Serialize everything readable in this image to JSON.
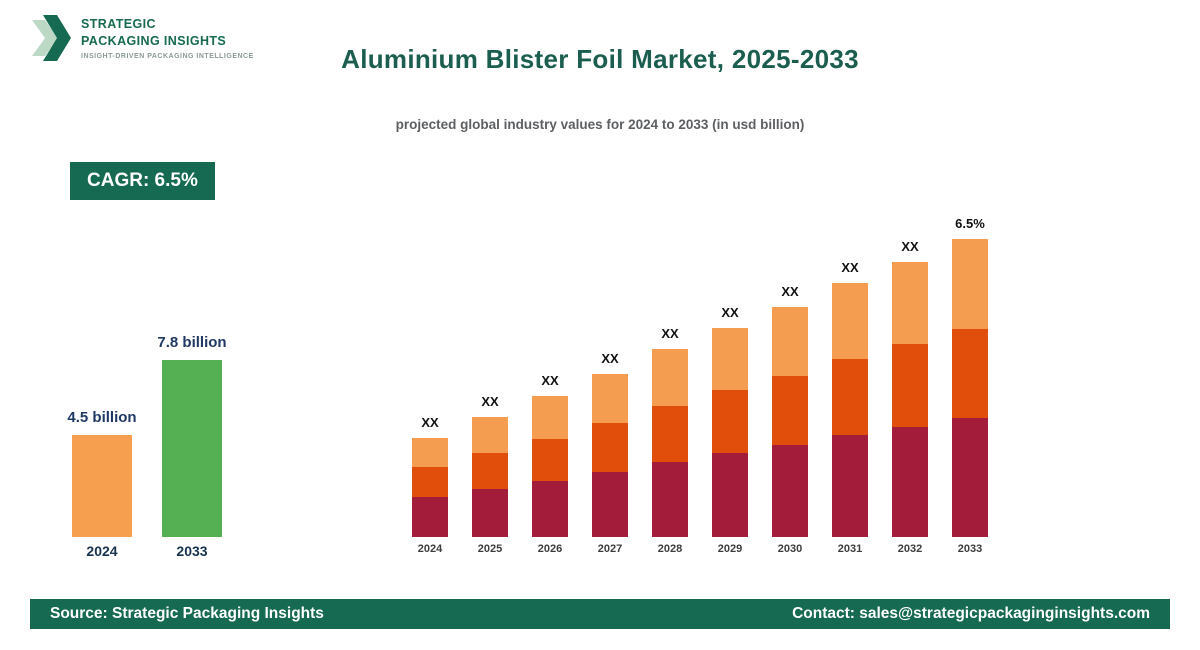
{
  "logo": {
    "line1": "STRATEGIC",
    "line2": "PACKAGING INSIGHTS",
    "tagline": "INSIGHT-DRIVEN PACKAGING INTELLIGENCE"
  },
  "header": {
    "title": "Aluminium Blister Foil Market, 2025-2033",
    "subtitle": "projected global industry values for 2024 to 2033 (in usd billion)"
  },
  "cagr_badge": "CAGR: 6.5%",
  "footer": {
    "source": "Source: Strategic Packaging Insights",
    "contact": "Contact: sales@strategicpackaginginsights.com"
  },
  "colors": {
    "brand_green": "#166a51",
    "title_green": "#1b5e50",
    "label_navy": "#1f3864",
    "orange": "#f6a04f",
    "green_bar": "#55b054",
    "maroon": "#a31d3a",
    "orange_red": "#e14e0b",
    "light_orange": "#f49d51"
  },
  "chart_data": [
    {
      "type": "bar",
      "title": "Market size 2024 vs 2033",
      "unit": "usd billion",
      "categories": [
        "2024",
        "2033"
      ],
      "values": [
        4.5,
        7.8
      ],
      "value_labels": [
        "4.5 billion",
        "7.8 billion"
      ],
      "bar_colors": [
        "#f6a04f",
        "#55b054"
      ],
      "grid": false,
      "legend": "none"
    },
    {
      "type": "bar",
      "stacked": true,
      "title": "Projected global industry values 2024-2033 (actual values masked as XX)",
      "unit": "relative height units (labels masked)",
      "categories": [
        "2024",
        "2025",
        "2026",
        "2027",
        "2028",
        "2029",
        "2030",
        "2031",
        "2032",
        "2033"
      ],
      "bar_labels": [
        "XX",
        "XX",
        "XX",
        "XX",
        "XX",
        "XX",
        "XX",
        "XX",
        "XX",
        "6.5%"
      ],
      "totals": [
        99,
        120,
        141,
        163,
        188,
        209,
        230,
        254,
        275,
        298
      ],
      "series": [
        {
          "name": "bottom-segment",
          "color": "#a31d3a",
          "values": [
            40,
            48,
            56,
            65,
            75,
            84,
            92,
            102,
            110,
            119
          ]
        },
        {
          "name": "middle-segment",
          "color": "#e14e0b",
          "values": [
            30,
            36,
            42,
            49,
            56,
            63,
            69,
            76,
            83,
            89
          ]
        },
        {
          "name": "top-segment",
          "color": "#f49d51",
          "values": [
            29,
            36,
            43,
            49,
            57,
            62,
            69,
            76,
            82,
            90
          ]
        }
      ],
      "grid": false,
      "legend": "none"
    }
  ]
}
